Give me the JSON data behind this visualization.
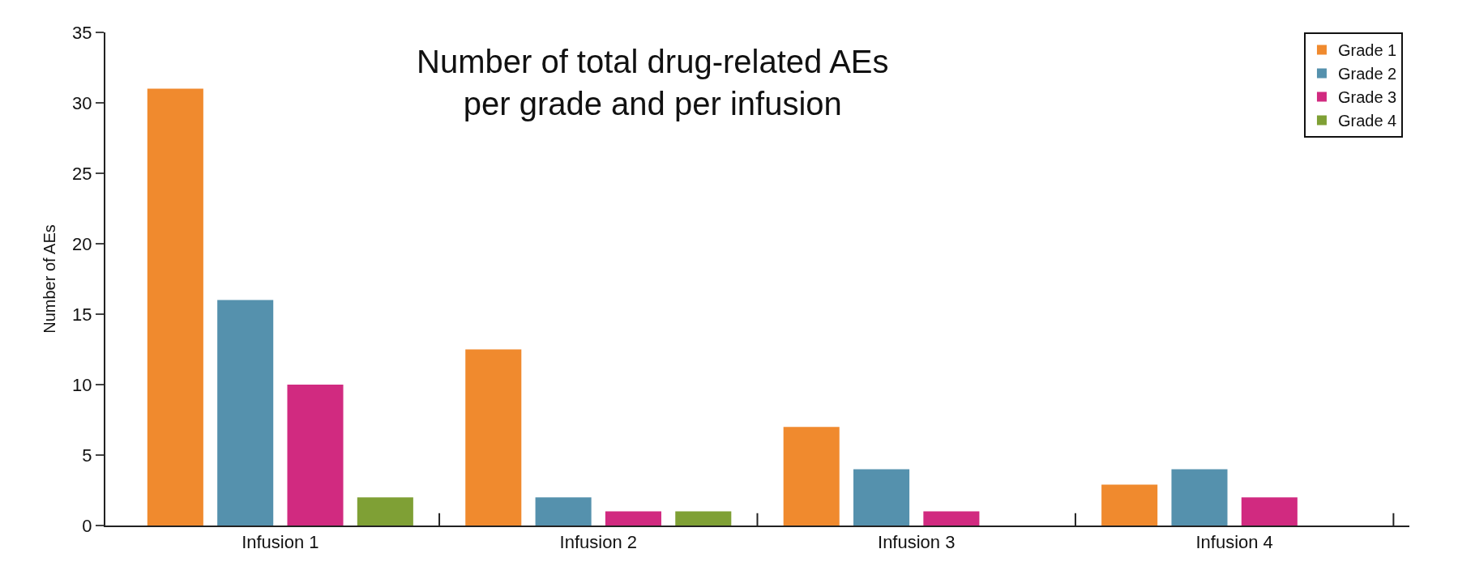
{
  "chart_data": {
    "type": "bar",
    "title": "Number of total drug-related AEs\nper grade and per infusion",
    "ylabel": "Number of AEs",
    "categories": [
      "Infusion 1",
      "Infusion 2",
      "Infusion 3",
      "Infusion 4"
    ],
    "series": [
      {
        "name": "Grade 1",
        "color": "#f08a2e",
        "values": [
          31,
          12.5,
          7,
          2.9
        ]
      },
      {
        "name": "Grade 2",
        "color": "#5591ad",
        "values": [
          16,
          2,
          4,
          4
        ]
      },
      {
        "name": "Grade 3",
        "color": "#d12a80",
        "values": [
          10,
          1,
          1,
          2
        ]
      },
      {
        "name": "Grade 4",
        "color": "#7fa035",
        "values": [
          2,
          1,
          0,
          0
        ]
      }
    ],
    "ylim": [
      0,
      35
    ],
    "yticks": [
      0,
      5,
      10,
      15,
      20,
      25,
      30,
      35
    ],
    "legend": "top right"
  }
}
